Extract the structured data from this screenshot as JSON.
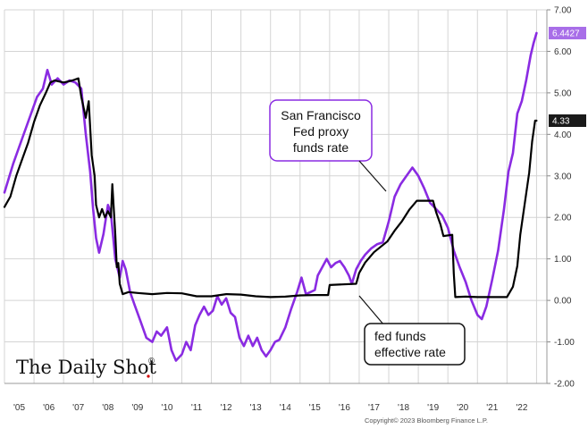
{
  "brand": {
    "logo_text": "The Daily Shot",
    "logo_mark": "®"
  },
  "copyright": "Copyright© 2023 Bloomberg Finance L.P.",
  "annotations": {
    "sf_lines": [
      "San Francisco",
      "Fed proxy",
      "funds rate"
    ],
    "ff_lines": [
      "fed funds",
      "effective rate"
    ]
  },
  "colors": {
    "purple": "#8a2be2",
    "black": "#000000",
    "grid": "#d4d4d4",
    "tag_purple": "#a86ee8",
    "tag_black": "#1a1a1a"
  },
  "chart_data": {
    "type": "line",
    "title": "",
    "xlabel": "",
    "ylabel": "",
    "xlim": [
      2005,
      2023.35
    ],
    "ylim": [
      -2.0,
      7.0
    ],
    "y_ticks": [
      "-2.00",
      "-1.00",
      "0.00",
      "1.00",
      "2.00",
      "3.00",
      "4.00",
      "5.00",
      "6.00",
      "7.00"
    ],
    "y_tick_values": [
      -2,
      -1,
      0,
      1,
      2,
      3,
      4,
      5,
      6,
      7
    ],
    "x_tick_labels": [
      "'05",
      "'06",
      "'07",
      "'08",
      "'09",
      "'10",
      "'11",
      "'12",
      "'13",
      "'14",
      "'15",
      "'16",
      "'17",
      "'18",
      "'19",
      "'20",
      "'21",
      "'22"
    ],
    "grid": true,
    "y_axis_side": "right",
    "series": [
      {
        "key": "sf_proxy",
        "color": "#8a2be2",
        "last_value_label": "6.4427",
        "points": [
          [
            2005.0,
            2.6
          ],
          [
            2005.3,
            3.3
          ],
          [
            2005.6,
            3.9
          ],
          [
            2005.9,
            4.5
          ],
          [
            2006.1,
            4.9
          ],
          [
            2006.3,
            5.1
          ],
          [
            2006.45,
            5.55
          ],
          [
            2006.6,
            5.2
          ],
          [
            2006.8,
            5.35
          ],
          [
            2007.0,
            5.2
          ],
          [
            2007.2,
            5.3
          ],
          [
            2007.4,
            5.25
          ],
          [
            2007.6,
            5.1
          ],
          [
            2007.75,
            4.0
          ],
          [
            2007.9,
            3.1
          ],
          [
            2008.0,
            2.2
          ],
          [
            2008.1,
            1.5
          ],
          [
            2008.2,
            1.15
          ],
          [
            2008.35,
            1.6
          ],
          [
            2008.5,
            2.3
          ],
          [
            2008.6,
            2.1
          ],
          [
            2008.75,
            1.0
          ],
          [
            2008.9,
            0.55
          ],
          [
            2009.0,
            0.95
          ],
          [
            2009.1,
            0.75
          ],
          [
            2009.25,
            0.2
          ],
          [
            2009.4,
            -0.1
          ],
          [
            2009.6,
            -0.5
          ],
          [
            2009.8,
            -0.9
          ],
          [
            2010.0,
            -1.0
          ],
          [
            2010.15,
            -0.75
          ],
          [
            2010.3,
            -0.85
          ],
          [
            2010.5,
            -0.65
          ],
          [
            2010.65,
            -1.2
          ],
          [
            2010.8,
            -1.45
          ],
          [
            2011.0,
            -1.3
          ],
          [
            2011.15,
            -1.0
          ],
          [
            2011.3,
            -1.2
          ],
          [
            2011.45,
            -0.6
          ],
          [
            2011.6,
            -0.35
          ],
          [
            2011.75,
            -0.15
          ],
          [
            2011.9,
            -0.35
          ],
          [
            2012.05,
            -0.25
          ],
          [
            2012.2,
            0.1
          ],
          [
            2012.35,
            -0.1
          ],
          [
            2012.5,
            0.05
          ],
          [
            2012.65,
            -0.3
          ],
          [
            2012.8,
            -0.4
          ],
          [
            2012.95,
            -0.9
          ],
          [
            2013.1,
            -1.1
          ],
          [
            2013.25,
            -0.85
          ],
          [
            2013.4,
            -1.1
          ],
          [
            2013.55,
            -0.9
          ],
          [
            2013.7,
            -1.2
          ],
          [
            2013.85,
            -1.35
          ],
          [
            2014.0,
            -1.2
          ],
          [
            2014.15,
            -1.0
          ],
          [
            2014.3,
            -0.95
          ],
          [
            2014.5,
            -0.65
          ],
          [
            2014.7,
            -0.2
          ],
          [
            2014.9,
            0.2
          ],
          [
            2015.05,
            0.55
          ],
          [
            2015.2,
            0.15
          ],
          [
            2015.35,
            0.2
          ],
          [
            2015.5,
            0.25
          ],
          [
            2015.6,
            0.6
          ],
          [
            2015.75,
            0.8
          ],
          [
            2015.9,
            1.0
          ],
          [
            2016.05,
            0.8
          ],
          [
            2016.2,
            0.9
          ],
          [
            2016.35,
            0.95
          ],
          [
            2016.5,
            0.8
          ],
          [
            2016.65,
            0.6
          ],
          [
            2016.75,
            0.4
          ],
          [
            2016.9,
            0.75
          ],
          [
            2017.05,
            0.95
          ],
          [
            2017.2,
            1.1
          ],
          [
            2017.4,
            1.25
          ],
          [
            2017.6,
            1.35
          ],
          [
            2017.8,
            1.4
          ],
          [
            2018.0,
            1.9
          ],
          [
            2018.2,
            2.5
          ],
          [
            2018.4,
            2.8
          ],
          [
            2018.6,
            3.0
          ],
          [
            2018.8,
            3.2
          ],
          [
            2019.0,
            3.0
          ],
          [
            2019.2,
            2.7
          ],
          [
            2019.4,
            2.35
          ],
          [
            2019.6,
            2.2
          ],
          [
            2019.8,
            2.05
          ],
          [
            2020.0,
            1.75
          ],
          [
            2020.2,
            1.2
          ],
          [
            2020.4,
            0.8
          ],
          [
            2020.6,
            0.45
          ],
          [
            2020.8,
            0.0
          ],
          [
            2021.0,
            -0.35
          ],
          [
            2021.15,
            -0.45
          ],
          [
            2021.3,
            -0.15
          ],
          [
            2021.5,
            0.5
          ],
          [
            2021.7,
            1.2
          ],
          [
            2021.9,
            2.2
          ],
          [
            2022.05,
            3.1
          ],
          [
            2022.2,
            3.55
          ],
          [
            2022.35,
            4.5
          ],
          [
            2022.5,
            4.8
          ],
          [
            2022.65,
            5.3
          ],
          [
            2022.8,
            5.9
          ],
          [
            2022.9,
            6.2
          ],
          [
            2023.0,
            6.44
          ]
        ]
      },
      {
        "key": "eff_ffr",
        "color": "#000000",
        "last_value_label": "4.33",
        "points": [
          [
            2005.0,
            2.25
          ],
          [
            2005.2,
            2.5
          ],
          [
            2005.4,
            3.0
          ],
          [
            2005.6,
            3.4
          ],
          [
            2005.8,
            3.8
          ],
          [
            2006.0,
            4.3
          ],
          [
            2006.2,
            4.7
          ],
          [
            2006.4,
            5.0
          ],
          [
            2006.55,
            5.25
          ],
          [
            2006.7,
            5.3
          ],
          [
            2007.0,
            5.25
          ],
          [
            2007.3,
            5.3
          ],
          [
            2007.5,
            5.35
          ],
          [
            2007.6,
            4.9
          ],
          [
            2007.75,
            4.4
          ],
          [
            2007.85,
            4.8
          ],
          [
            2007.95,
            3.5
          ],
          [
            2008.05,
            3.0
          ],
          [
            2008.1,
            2.3
          ],
          [
            2008.2,
            2.0
          ],
          [
            2008.3,
            2.2
          ],
          [
            2008.4,
            2.0
          ],
          [
            2008.5,
            2.15
          ],
          [
            2008.6,
            2.0
          ],
          [
            2008.65,
            2.8
          ],
          [
            2008.75,
            1.6
          ],
          [
            2008.8,
            0.8
          ],
          [
            2008.85,
            0.9
          ],
          [
            2008.9,
            0.4
          ],
          [
            2009.0,
            0.15
          ],
          [
            2009.2,
            0.2
          ],
          [
            2009.5,
            0.18
          ],
          [
            2010.0,
            0.15
          ],
          [
            2010.5,
            0.18
          ],
          [
            2011.0,
            0.17
          ],
          [
            2011.5,
            0.1
          ],
          [
            2012.0,
            0.1
          ],
          [
            2012.5,
            0.15
          ],
          [
            2013.0,
            0.14
          ],
          [
            2013.5,
            0.1
          ],
          [
            2014.0,
            0.08
          ],
          [
            2014.5,
            0.09
          ],
          [
            2015.0,
            0.12
          ],
          [
            2015.5,
            0.13
          ],
          [
            2015.95,
            0.13
          ],
          [
            2016.0,
            0.37
          ],
          [
            2016.9,
            0.4
          ],
          [
            2017.0,
            0.66
          ],
          [
            2017.2,
            0.91
          ],
          [
            2017.5,
            1.16
          ],
          [
            2017.95,
            1.42
          ],
          [
            2018.2,
            1.68
          ],
          [
            2018.45,
            1.91
          ],
          [
            2018.7,
            2.19
          ],
          [
            2018.95,
            2.4
          ],
          [
            2019.5,
            2.4
          ],
          [
            2019.6,
            2.13
          ],
          [
            2019.75,
            1.83
          ],
          [
            2019.85,
            1.55
          ],
          [
            2020.15,
            1.58
          ],
          [
            2020.2,
            0.65
          ],
          [
            2020.25,
            0.08
          ],
          [
            2020.6,
            0.09
          ],
          [
            2021.0,
            0.08
          ],
          [
            2021.5,
            0.08
          ],
          [
            2022.0,
            0.08
          ],
          [
            2022.2,
            0.33
          ],
          [
            2022.35,
            0.83
          ],
          [
            2022.45,
            1.58
          ],
          [
            2022.6,
            2.33
          ],
          [
            2022.75,
            3.08
          ],
          [
            2022.85,
            3.83
          ],
          [
            2022.95,
            4.33
          ],
          [
            2023.0,
            4.33
          ]
        ]
      }
    ]
  }
}
